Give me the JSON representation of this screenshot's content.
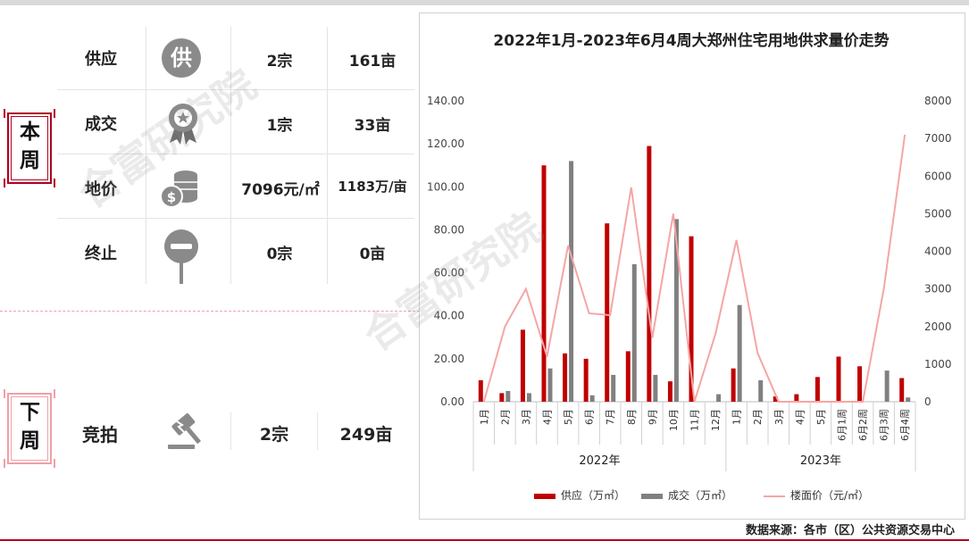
{
  "this_week": {
    "badge": "本周",
    "rows": [
      {
        "label": "供应",
        "icon": "supply-icon",
        "count": "2宗",
        "area": "161亩"
      },
      {
        "label": "成交",
        "icon": "medal-icon",
        "count": "1宗",
        "area": "33亩"
      },
      {
        "label": "地价",
        "icon": "coins-icon",
        "count": "7096元/㎡",
        "area": "1183万/亩"
      },
      {
        "label": "终止",
        "icon": "stop-sign-icon",
        "count": "0宗",
        "area": "0亩"
      }
    ]
  },
  "next_week": {
    "badge": "下周",
    "rows": [
      {
        "label": "竞拍",
        "icon": "gavel-icon",
        "count": "2宗",
        "area": "249亩"
      }
    ]
  },
  "watermark": "合富研究院",
  "source_note": "数据来源：各市（区）公共资源交易中心",
  "chart_data": {
    "type": "bar",
    "title": "2022年1月-2023年6月4周大郑州住宅用地供求量价走势",
    "categories": [
      "1月",
      "2月",
      "3月",
      "4月",
      "5月",
      "6月",
      "7月",
      "8月",
      "9月",
      "10月",
      "11月",
      "12月",
      "1月",
      "2月",
      "3月",
      "4月",
      "5月",
      "6月1周",
      "6月2周",
      "6月3周",
      "6月4周"
    ],
    "groups": [
      {
        "label": "2022年",
        "from": 0,
        "to": 11
      },
      {
        "label": "2023年",
        "from": 12,
        "to": 20
      }
    ],
    "y_left": {
      "min": 0,
      "max": 140,
      "ticks": [
        "0.00",
        "20.00",
        "40.00",
        "60.00",
        "80.00",
        "100.00",
        "120.00",
        "140.00"
      ]
    },
    "y_right": {
      "min": 0,
      "max": 8000,
      "ticks": [
        "0",
        "1000",
        "2000",
        "3000",
        "4000",
        "5000",
        "6000",
        "7000",
        "8000"
      ]
    },
    "series": [
      {
        "name": "供应（万㎡）",
        "type": "bar",
        "axis": "left",
        "color": "#c00000",
        "values": [
          10,
          4,
          33.5,
          110,
          22.5,
          20,
          83,
          23.5,
          119,
          9.5,
          77,
          0,
          15.5,
          0,
          2.5,
          3.5,
          11.5,
          21,
          16.5,
          0,
          11
        ]
      },
      {
        "name": "成交（万㎡）",
        "type": "bar",
        "axis": "left",
        "color": "#808080",
        "values": [
          0,
          5,
          4,
          15.5,
          112,
          3,
          12.5,
          64,
          12.5,
          85,
          0,
          3.5,
          45,
          10,
          0,
          0,
          0,
          0,
          0,
          14.5,
          2
        ]
      },
      {
        "name": "楼面价（元/㎡）",
        "type": "line",
        "axis": "right",
        "color": "#f4a6a6",
        "values": [
          0,
          2000,
          3000,
          1200,
          4150,
          2350,
          2300,
          5700,
          1700,
          5000,
          0,
          1800,
          4300,
          1300,
          0,
          0,
          0,
          0,
          0,
          3000,
          7100
        ]
      }
    ]
  }
}
